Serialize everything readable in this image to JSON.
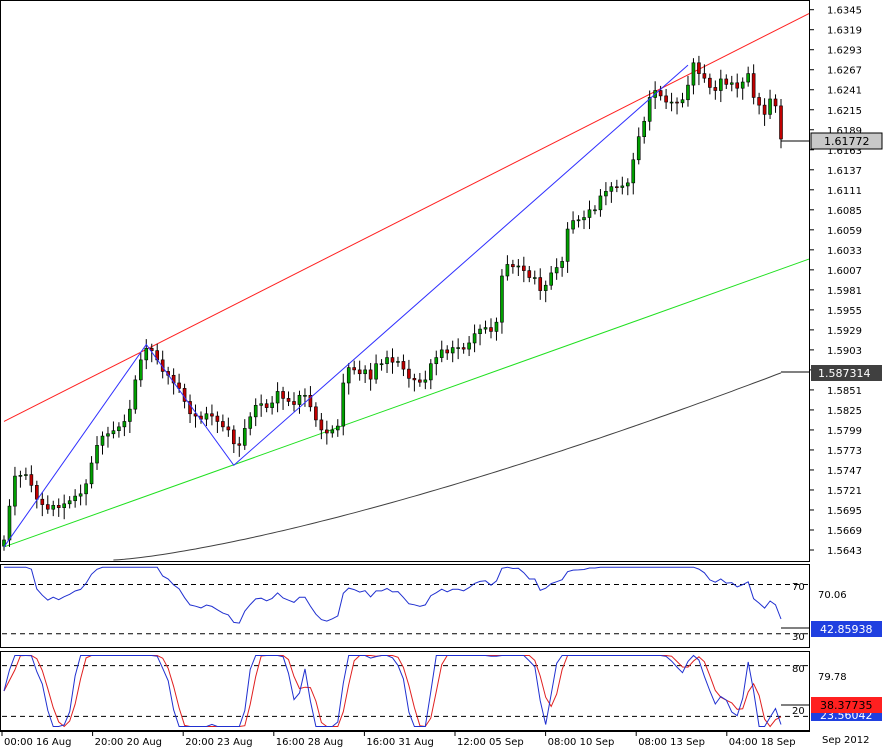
{
  "chart_data": [
    {
      "type": "candlestick",
      "symbol": "",
      "y_ticks": [
        "1.6345",
        "1.6319",
        "1.6293",
        "1.6267",
        "1.6241",
        "1.6215",
        "1.6189",
        "1.6163",
        "1.6137",
        "1.6111",
        "1.6085",
        "1.6059",
        "1.6033",
        "1.6007",
        "1.5981",
        "1.5955",
        "1.5929",
        "1.5903",
        "1.5877",
        "1.5851",
        "1.5825",
        "1.5799",
        "1.5773",
        "1.5747",
        "1.5721",
        "1.5695",
        "1.5669",
        "1.5643"
      ],
      "ylim": [
        1.563,
        1.6355
      ],
      "x_ticks": [
        "00:00 16 Aug",
        "20:00 20 Aug",
        "20:00 23 Aug",
        "16:00 28 Aug",
        "16:00 31 Aug",
        "12:00 05 Sep",
        "08:00 10 Sep",
        "08:00 13 Sep",
        "04:00 18 Sep"
      ],
      "date_label": "Sep 2012",
      "price_tag": "1.61772",
      "price_value": 1.61772,
      "ma_tag": "1.587314",
      "ma_value": 1.587314,
      "colors": {
        "bull": "#00a000",
        "bear": "#c00000",
        "ma": "#404040",
        "upper_channel": "#ff2020",
        "lower_channel": "#20e020",
        "zigzag": "#3030ff"
      },
      "candles_close": [
        1.5656,
        1.57,
        1.5739,
        1.574,
        1.5741,
        1.5727,
        1.5709,
        1.5702,
        1.5696,
        1.5701,
        1.5698,
        1.5703,
        1.5707,
        1.5713,
        1.5716,
        1.5729,
        1.5756,
        1.5779,
        1.5791,
        1.5794,
        1.5798,
        1.5803,
        1.581,
        1.5826,
        1.5864,
        1.589,
        1.5905,
        1.5902,
        1.589,
        1.5875,
        1.587,
        1.586,
        1.5853,
        1.5836,
        1.582,
        1.5817,
        1.5813,
        1.582,
        1.5817,
        1.581,
        1.5803,
        1.5799,
        1.5781,
        1.5779,
        1.5801,
        1.5816,
        1.5831,
        1.5833,
        1.5828,
        1.5834,
        1.5849,
        1.584,
        1.5836,
        1.5832,
        1.5844,
        1.5844,
        1.5829,
        1.5812,
        1.5799,
        1.5795,
        1.5799,
        1.5804,
        1.586,
        1.588,
        1.5877,
        1.5872,
        1.5877,
        1.5865,
        1.5885,
        1.5885,
        1.5893,
        1.5887,
        1.5888,
        1.5878,
        1.5866,
        1.5864,
        1.5861,
        1.5864,
        1.5885,
        1.5893,
        1.5903,
        1.5899,
        1.5906,
        1.5906,
        1.5904,
        1.5912,
        1.5924,
        1.593,
        1.5932,
        1.5927,
        1.5939,
        1.5999,
        1.6014,
        1.6011,
        1.6012,
        1.6006,
        1.5997,
        1.5997,
        1.598,
        1.5987,
        1.6003,
        1.601,
        1.6018,
        1.606,
        1.6071,
        1.6072,
        1.6075,
        1.6085,
        1.6085,
        1.6103,
        1.6109,
        1.6115,
        1.6114,
        1.6116,
        1.612,
        1.615,
        1.618,
        1.62,
        1.6231,
        1.624,
        1.6233,
        1.6225,
        1.6225,
        1.6224,
        1.6228,
        1.6247,
        1.6276,
        1.6262,
        1.6256,
        1.6244,
        1.624,
        1.6255,
        1.6248,
        1.625,
        1.6243,
        1.6251,
        1.6262,
        1.6231,
        1.6221,
        1.6209,
        1.6229,
        1.622,
        1.6177
      ],
      "zigzag": [
        1.5647,
        1.591,
        1.5753,
        1.6273
      ],
      "upper_channel": [
        1.581,
        1.634
      ],
      "lower_channel": [
        1.5647,
        1.6021
      ]
    },
    {
      "type": "line",
      "name": "",
      "levels": [
        "70",
        "30"
      ],
      "current_tag": "42.85938",
      "last_value_label": "70.06",
      "ylim": [
        20,
        85
      ],
      "colors": {
        "line": "#2030d0",
        "tag_bg": "#2040e0"
      }
    },
    {
      "type": "line",
      "name": "",
      "levels": [
        "80",
        "20"
      ],
      "current_tag": "38.37735",
      "hidden_tag_fragment": "23.56042",
      "top_value_label": "79.78",
      "ylim": [
        5,
        95
      ],
      "colors": {
        "k_line": "#2030d0",
        "d_line": "#e02020",
        "tag_bg": "#ff2020"
      }
    }
  ]
}
